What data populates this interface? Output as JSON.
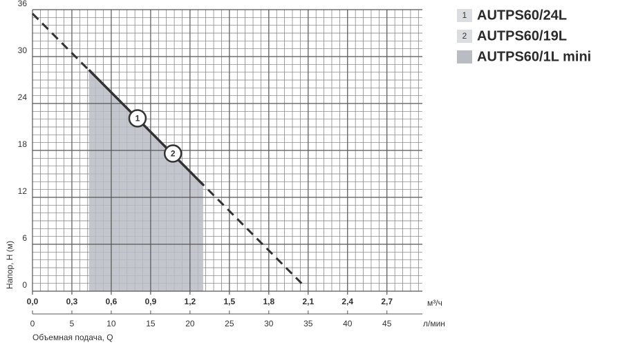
{
  "chart_data": {
    "type": "pump-curve",
    "y_label": "Напор, H (м)",
    "x_unit": "м³/ч",
    "x2_unit": "л/мин",
    "x2_label": "Объемная подача, Q",
    "xlim": [
      0,
      2.97
    ],
    "ylim": [
      0,
      36
    ],
    "x2lim": [
      0,
      49.5
    ],
    "xticks": [
      {
        "value": 0,
        "label": "0,0"
      },
      {
        "value": 0.3,
        "label": "0,3"
      },
      {
        "value": 0.6,
        "label": "0,6"
      },
      {
        "value": 0.9,
        "label": "0,9"
      },
      {
        "value": 1.2,
        "label": "1,2"
      },
      {
        "value": 1.5,
        "label": "1,5"
      },
      {
        "value": 1.8,
        "label": "1,8"
      },
      {
        "value": 2.1,
        "label": "2,1"
      },
      {
        "value": 2.4,
        "label": "2,4"
      },
      {
        "value": 2.7,
        "label": "2,7"
      }
    ],
    "yticks": [
      0,
      6,
      12,
      18,
      24,
      30,
      36
    ],
    "x2ticks": [
      0,
      5,
      10,
      15,
      20,
      25,
      30,
      35,
      40,
      45
    ],
    "x_minor_step": 0.06,
    "y_minor_step": 1,
    "grid": true,
    "curve": {
      "color": "#333333",
      "x": [
        0,
        2.05
      ],
      "values": [
        35.5,
        1
      ]
    },
    "working_range": {
      "color": "#333333",
      "x": [
        0.43,
        1.3
      ],
      "values": [
        28.3,
        13.6
      ]
    },
    "series": [
      {
        "name": "AUTPS60/24L",
        "marker": "1",
        "color": "#333333",
        "x": [
          0.8
        ],
        "values": [
          22.1
        ]
      },
      {
        "name": "AUTPS60/19L",
        "marker": "2",
        "color": "#333333",
        "x": [
          1.07
        ],
        "values": [
          17.6
        ]
      },
      {
        "name": "AUTPS60/1L mini",
        "color": "#b9bcc3",
        "x": [
          0.43,
          1.3
        ],
        "values": [
          28.3,
          13.6
        ]
      }
    ]
  }
}
